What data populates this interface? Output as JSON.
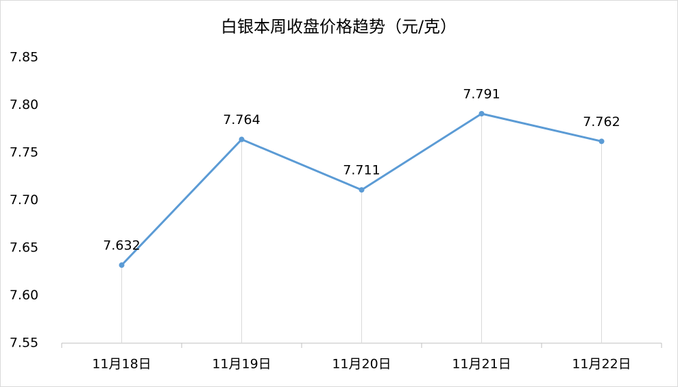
{
  "chart_data": {
    "type": "line",
    "title": "白银本周收盘价格趋势（元/克）",
    "categories": [
      "11月18日",
      "11月19日",
      "11月20日",
      "11月21日",
      "11月22日"
    ],
    "series": [
      {
        "name": "白银",
        "color": "#5b9bd5",
        "values": [
          7.632,
          7.764,
          7.711,
          7.791,
          7.762
        ]
      }
    ],
    "ylim": [
      7.55,
      7.85
    ],
    "yticks": [
      7.55,
      {
        "value": 7.6,
        "label": "7.60"
      },
      7.65,
      {
        "value": 7.7,
        "label": "7.70"
      },
      7.75,
      {
        "value": 7.8,
        "label": "7.80"
      },
      7.85
    ],
    "grid": false,
    "drop_lines": true
  }
}
